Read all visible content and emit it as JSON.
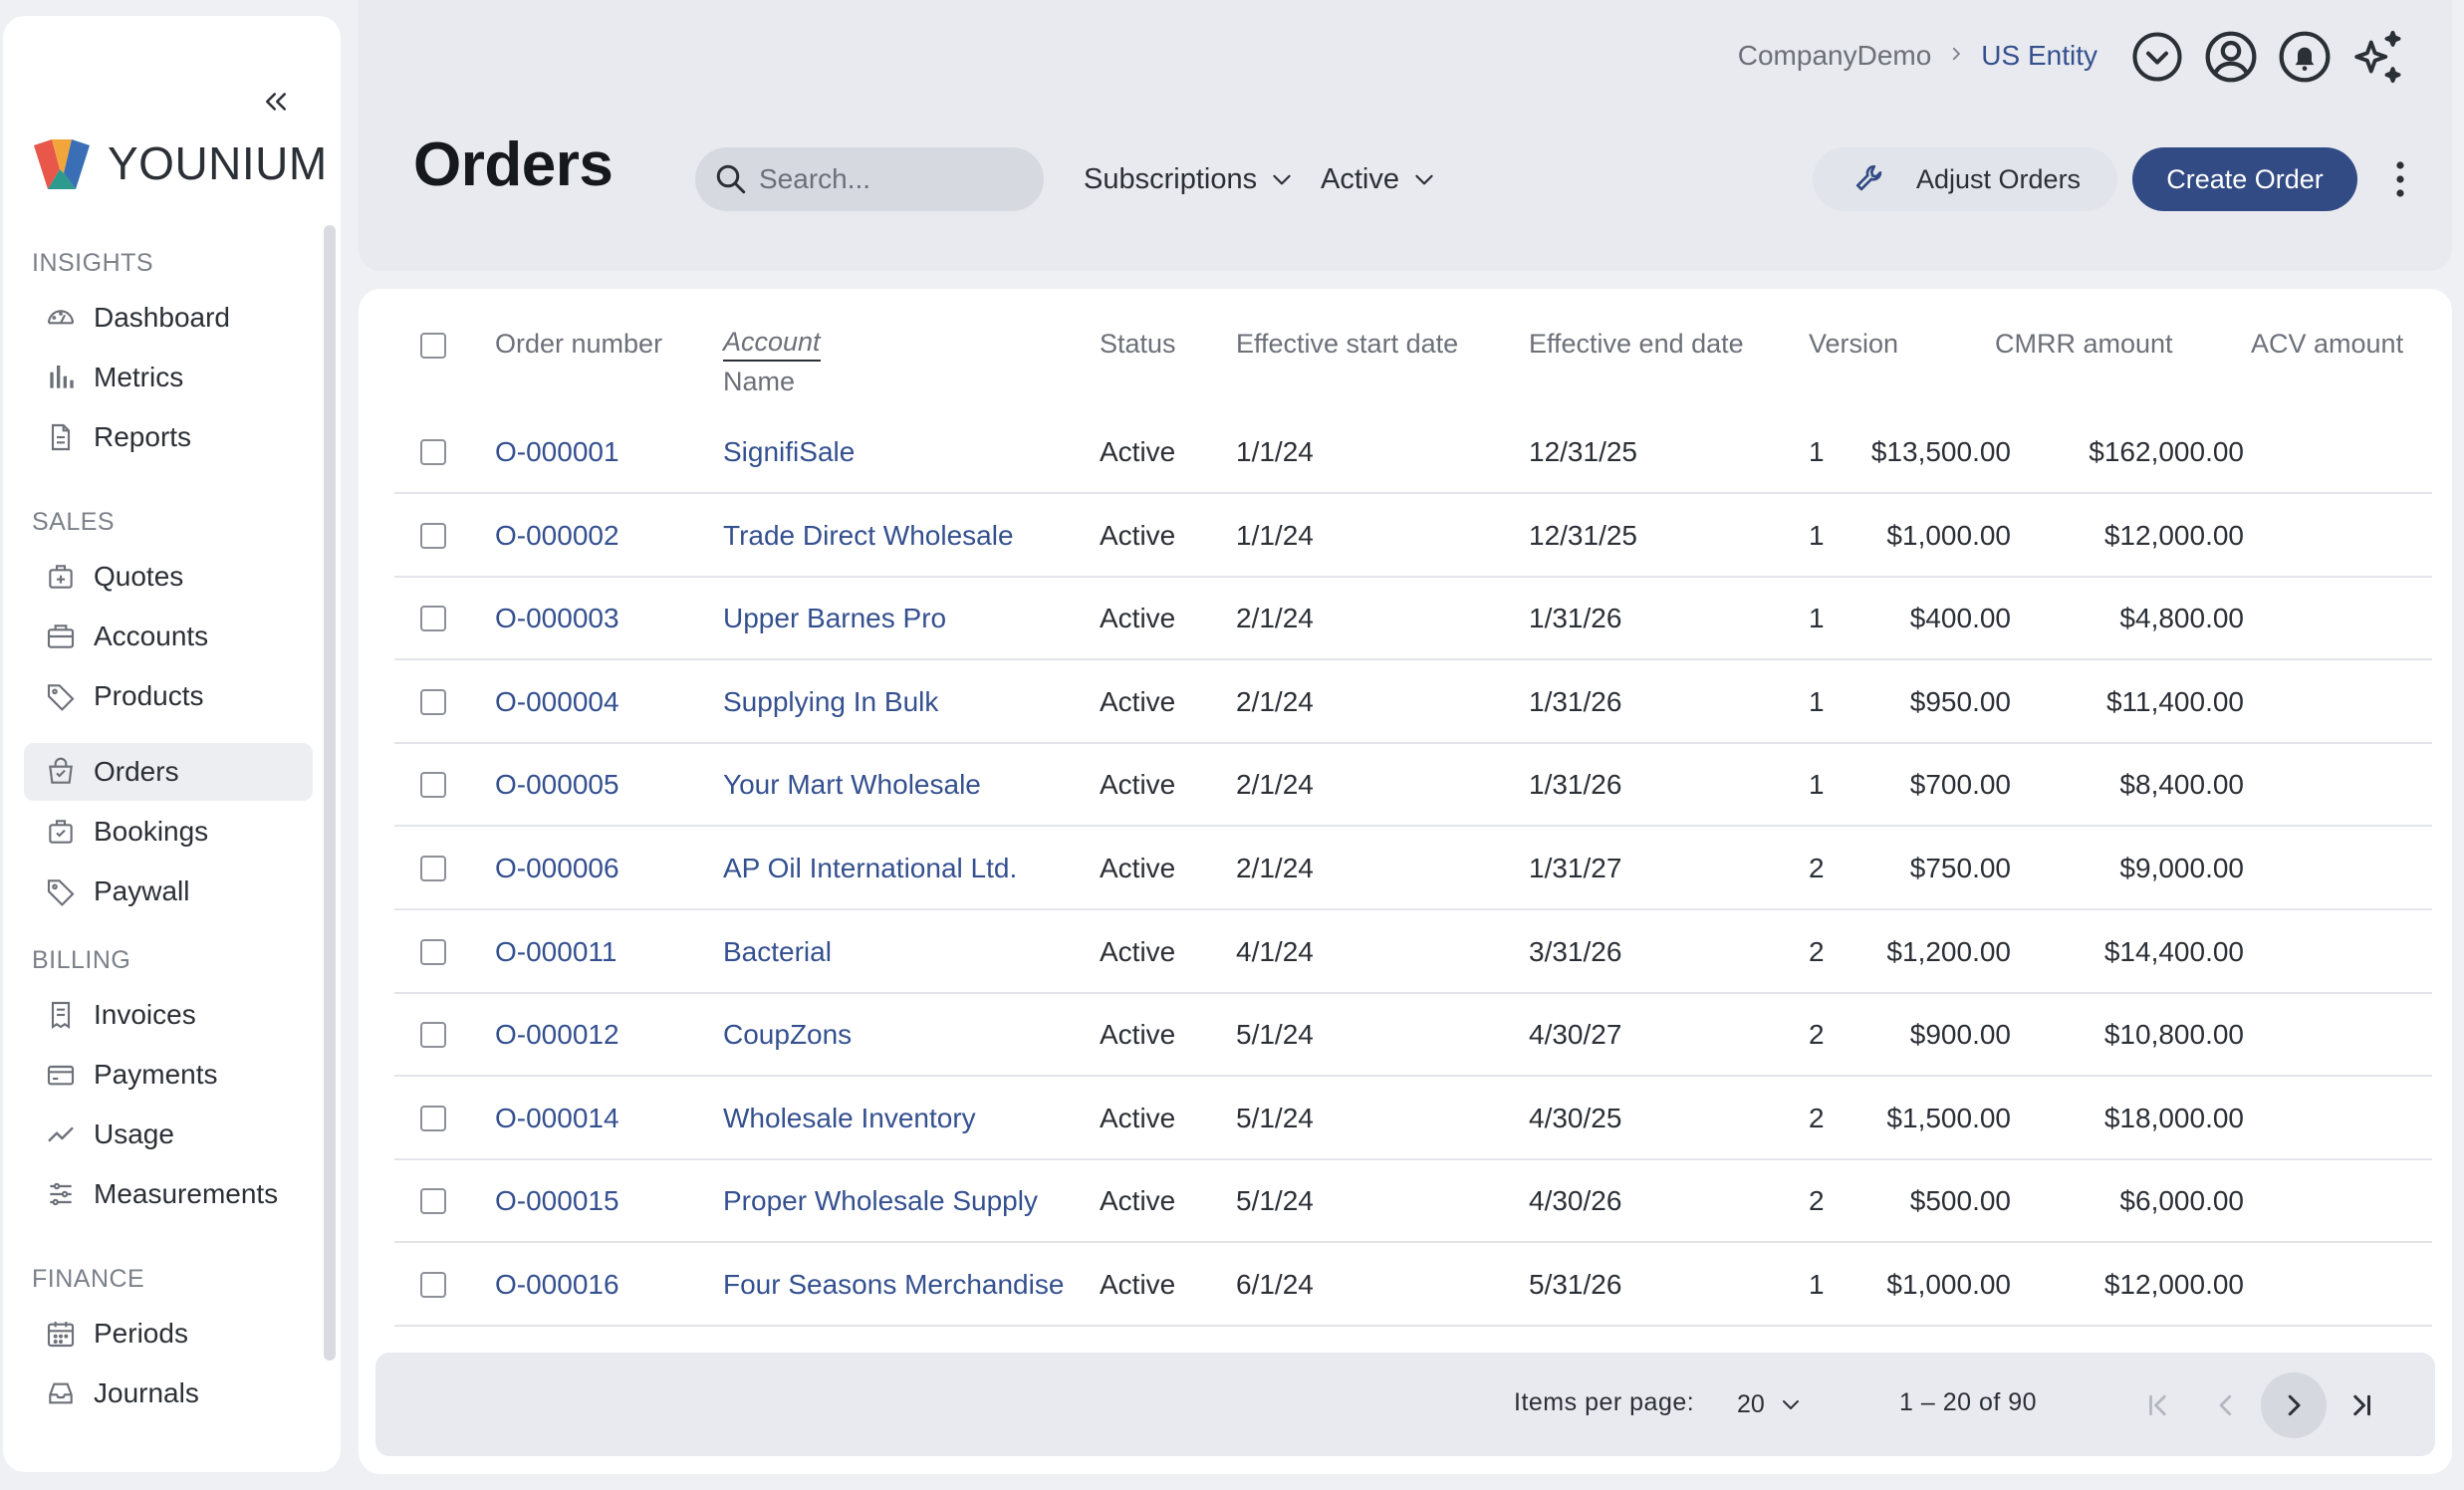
{
  "brand": {
    "name": "YOUNIUM"
  },
  "sidebar": {
    "sections": [
      {
        "label": "INSIGHTS",
        "items": [
          {
            "label": "Dashboard",
            "icon": "dashboard-icon"
          },
          {
            "label": "Metrics",
            "icon": "metrics-icon"
          },
          {
            "label": "Reports",
            "icon": "reports-icon"
          }
        ]
      },
      {
        "label": "SALES",
        "items": [
          {
            "label": "Quotes",
            "icon": "quotes-icon"
          },
          {
            "label": "Accounts",
            "icon": "accounts-icon"
          },
          {
            "label": "Products",
            "icon": "products-icon"
          },
          {
            "label": "Orders",
            "icon": "orders-icon",
            "active": true
          },
          {
            "label": "Bookings",
            "icon": "bookings-icon"
          },
          {
            "label": "Paywall",
            "icon": "paywall-icon"
          }
        ]
      },
      {
        "label": "BILLING",
        "items": [
          {
            "label": "Invoices",
            "icon": "invoices-icon"
          },
          {
            "label": "Payments",
            "icon": "payments-icon"
          },
          {
            "label": "Usage",
            "icon": "usage-icon"
          },
          {
            "label": "Measurements",
            "icon": "measurements-icon"
          }
        ]
      },
      {
        "label": "FINANCE",
        "items": [
          {
            "label": "Periods",
            "icon": "periods-icon"
          },
          {
            "label": "Journals",
            "icon": "journals-icon"
          }
        ]
      }
    ]
  },
  "header": {
    "breadcrumb": {
      "company": "CompanyDemo",
      "entity": "US Entity"
    },
    "title": "Orders",
    "search_placeholder": "Search...",
    "filter_type": "Subscriptions",
    "filter_status": "Active",
    "adjust_label": "Adjust Orders",
    "create_label": "Create Order"
  },
  "table": {
    "columns": {
      "order_number": "Order number",
      "account": "Account",
      "account_sub": "Name",
      "status": "Status",
      "start": "Effective start date",
      "end": "Effective end date",
      "version": "Version",
      "cmrr": "CMRR amount",
      "acv": "ACV amount"
    },
    "rows": [
      {
        "order": "O-000001",
        "account": "SignifiSale",
        "status": "Active",
        "start": "1/1/24",
        "end": "12/31/25",
        "version": "1",
        "cmrr": "$13,500.00",
        "acv": "$162,000.00"
      },
      {
        "order": "O-000002",
        "account": "Trade Direct Wholesale",
        "status": "Active",
        "start": "1/1/24",
        "end": "12/31/25",
        "version": "1",
        "cmrr": "$1,000.00",
        "acv": "$12,000.00"
      },
      {
        "order": "O-000003",
        "account": "Upper Barnes Pro",
        "status": "Active",
        "start": "2/1/24",
        "end": "1/31/26",
        "version": "1",
        "cmrr": "$400.00",
        "acv": "$4,800.00"
      },
      {
        "order": "O-000004",
        "account": "Supplying In Bulk",
        "status": "Active",
        "start": "2/1/24",
        "end": "1/31/26",
        "version": "1",
        "cmrr": "$950.00",
        "acv": "$11,400.00"
      },
      {
        "order": "O-000005",
        "account": "Your Mart Wholesale",
        "status": "Active",
        "start": "2/1/24",
        "end": "1/31/26",
        "version": "1",
        "cmrr": "$700.00",
        "acv": "$8,400.00"
      },
      {
        "order": "O-000006",
        "account": "AP Oil International Ltd.",
        "status": "Active",
        "start": "2/1/24",
        "end": "1/31/27",
        "version": "2",
        "cmrr": "$750.00",
        "acv": "$9,000.00"
      },
      {
        "order": "O-000011",
        "account": "Bacterial",
        "status": "Active",
        "start": "4/1/24",
        "end": "3/31/26",
        "version": "2",
        "cmrr": "$1,200.00",
        "acv": "$14,400.00"
      },
      {
        "order": "O-000012",
        "account": "CoupZons",
        "status": "Active",
        "start": "5/1/24",
        "end": "4/30/27",
        "version": "2",
        "cmrr": "$900.00",
        "acv": "$10,800.00"
      },
      {
        "order": "O-000014",
        "account": "Wholesale Inventory",
        "status": "Active",
        "start": "5/1/24",
        "end": "4/30/25",
        "version": "2",
        "cmrr": "$1,500.00",
        "acv": "$18,000.00"
      },
      {
        "order": "O-000015",
        "account": "Proper Wholesale Supply",
        "status": "Active",
        "start": "5/1/24",
        "end": "4/30/26",
        "version": "2",
        "cmrr": "$500.00",
        "acv": "$6,000.00"
      },
      {
        "order": "O-000016",
        "account": "Four Seasons Merchandise",
        "status": "Active",
        "start": "6/1/24",
        "end": "5/31/26",
        "version": "1",
        "cmrr": "$1,000.00",
        "acv": "$12,000.00"
      }
    ]
  },
  "paginator": {
    "items_per_page_label": "Items per page:",
    "page_size": "20",
    "range": "1 – 20 of 90"
  },
  "colors": {
    "primary": "#324b84",
    "link": "#34508f",
    "background": "#eef0f4",
    "header": "#e8eaef"
  }
}
